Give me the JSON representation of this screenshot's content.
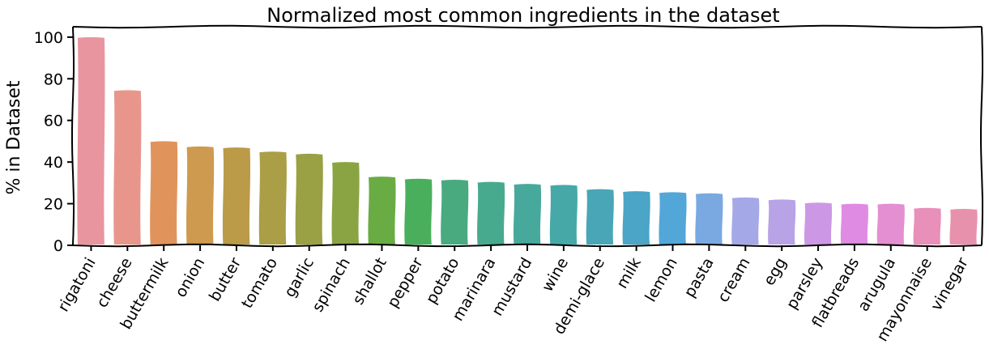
{
  "chart_data": {
    "type": "bar",
    "title": "Normalized most common ingredients in the dataset",
    "xlabel": "",
    "ylabel": "% in Dataset",
    "ylim": [
      0,
      105
    ],
    "yticks": [
      0,
      20,
      40,
      60,
      80,
      100
    ],
    "grid": false,
    "legend": "none",
    "categories": [
      "rigatoni",
      "cheese",
      "buttermilk",
      "onion",
      "butter",
      "tomato",
      "garlic",
      "spinach",
      "shallot",
      "pepper",
      "potato",
      "marinara",
      "mustard",
      "wine",
      "demi-glace",
      "milk",
      "lemon",
      "pasta",
      "cream",
      "egg",
      "parsley",
      "flatbreads",
      "arugula",
      "mayonnaise",
      "vinegar"
    ],
    "values": [
      100,
      74.5,
      50,
      47.5,
      47,
      45,
      44,
      40,
      33,
      32,
      31.5,
      30.5,
      29.5,
      29,
      27,
      26,
      25.5,
      25,
      23,
      22,
      20.5,
      20,
      20,
      18,
      17.5
    ],
    "colors": [
      "#e8959f",
      "#e8968c",
      "#e0945c",
      "#cd9a4f",
      "#bb9a48",
      "#aa9e47",
      "#9aa044",
      "#8aa444",
      "#6aac44",
      "#4aaf5d",
      "#49aa80",
      "#47aa8f",
      "#47a99c",
      "#46a9a8",
      "#48a6b6",
      "#4aa5c6",
      "#52a7d8",
      "#7aa9e2",
      "#a4a8e6",
      "#b7a3e6",
      "#cc98e6",
      "#e08be3",
      "#e48fd2",
      "#e88fba",
      "#e891ad"
    ]
  }
}
